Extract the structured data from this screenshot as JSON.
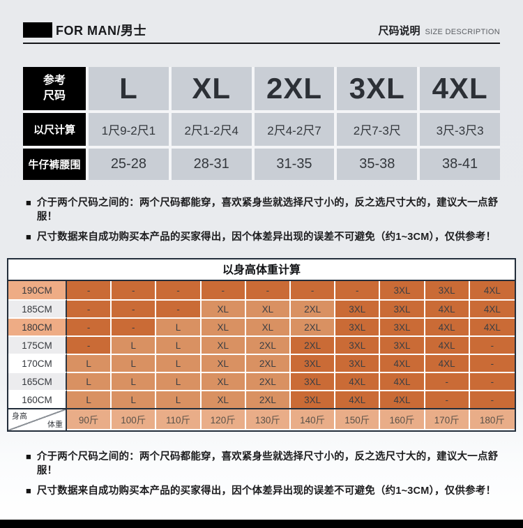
{
  "header": {
    "brand": "FOR MAN/男士",
    "section_title_cn": "尺码说明",
    "section_title_en": "SIZE DESCRIPTION"
  },
  "size_table": {
    "corner_label": "参考\n尺码",
    "sizes": [
      "L",
      "XL",
      "2XL",
      "3XL",
      "4XL"
    ],
    "rows": [
      {
        "label": "以尺计算",
        "values": [
          "1尺9-2尺1",
          "2尺1-2尺4",
          "2尺4-2尺7",
          "2尺7-3尺",
          "3尺-3尺3"
        ]
      },
      {
        "label": "牛仔裤腰围",
        "values": [
          "25-28",
          "28-31",
          "31-35",
          "35-38",
          "38-41"
        ]
      }
    ],
    "colors": {
      "header_bg": "#000000",
      "cell_bg": "#c9ced5"
    }
  },
  "notes": {
    "bullet": "■",
    "items": [
      "介于两个尺码之间的：两个尺码都能穿，喜欢紧身些就选择尺寸小的，反之选尺寸大的，建议大一点舒服！",
      "尺寸数据来自成功购买本产品的买家得出，因个体差异出现的误差不可避免（约1~3CM），仅供参考！"
    ]
  },
  "height_table": {
    "title": "以身高体重计算",
    "corner": {
      "top_left": "身高",
      "bottom_right": "体重"
    },
    "weights": [
      "90斤",
      "100斤",
      "110斤",
      "120斤",
      "130斤",
      "140斤",
      "150斤",
      "160斤",
      "170斤",
      "180斤"
    ],
    "rows": [
      {
        "height": "190CM",
        "header_shade": "salmon",
        "cells": [
          [
            "-",
            "dark"
          ],
          [
            "-",
            "dark"
          ],
          [
            "-",
            "dark"
          ],
          [
            "-",
            "dark"
          ],
          [
            "-",
            "dark"
          ],
          [
            "-",
            "dark"
          ],
          [
            "-",
            "dark"
          ],
          [
            "3XL",
            "dark"
          ],
          [
            "3XL",
            "dark"
          ],
          [
            "4XL",
            "dark"
          ]
        ]
      },
      {
        "height": "185CM",
        "header_shade": "gray",
        "cells": [
          [
            "-",
            "dark"
          ],
          [
            "-",
            "dark"
          ],
          [
            "-",
            "dark"
          ],
          [
            "XL",
            "light"
          ],
          [
            "XL",
            "light"
          ],
          [
            "2XL",
            "light"
          ],
          [
            "3XL",
            "dark"
          ],
          [
            "3XL",
            "dark"
          ],
          [
            "4XL",
            "dark"
          ],
          [
            "4XL",
            "dark"
          ]
        ]
      },
      {
        "height": "180CM",
        "header_shade": "salmon",
        "cells": [
          [
            "-",
            "dark"
          ],
          [
            "-",
            "dark"
          ],
          [
            "L",
            "light"
          ],
          [
            "XL",
            "light"
          ],
          [
            "XL",
            "light"
          ],
          [
            "2XL",
            "light"
          ],
          [
            "3XL",
            "dark"
          ],
          [
            "3XL",
            "dark"
          ],
          [
            "4XL",
            "dark"
          ],
          [
            "4XL",
            "dark"
          ]
        ]
      },
      {
        "height": "175CM",
        "header_shade": "gray",
        "cells": [
          [
            "-",
            "dark"
          ],
          [
            "L",
            "light"
          ],
          [
            "L",
            "light"
          ],
          [
            "XL",
            "light"
          ],
          [
            "2XL",
            "light"
          ],
          [
            "2XL",
            "dark"
          ],
          [
            "3XL",
            "dark"
          ],
          [
            "3XL",
            "dark"
          ],
          [
            "4XL",
            "dark"
          ],
          [
            "-",
            "dark"
          ]
        ]
      },
      {
        "height": "170CM",
        "header_shade": "white",
        "cells": [
          [
            "L",
            "light"
          ],
          [
            "L",
            "light"
          ],
          [
            "L",
            "light"
          ],
          [
            "XL",
            "light"
          ],
          [
            "2XL",
            "light"
          ],
          [
            "3XL",
            "dark"
          ],
          [
            "3XL",
            "dark"
          ],
          [
            "4XL",
            "dark"
          ],
          [
            "4XL",
            "dark"
          ],
          [
            "-",
            "dark"
          ]
        ]
      },
      {
        "height": "165CM",
        "header_shade": "gray",
        "cells": [
          [
            "L",
            "light"
          ],
          [
            "L",
            "light"
          ],
          [
            "L",
            "light"
          ],
          [
            "XL",
            "light"
          ],
          [
            "2XL",
            "light"
          ],
          [
            "3XL",
            "dark"
          ],
          [
            "4XL",
            "dark"
          ],
          [
            "4XL",
            "dark"
          ],
          [
            "-",
            "dark"
          ],
          [
            "-",
            "dark"
          ]
        ]
      },
      {
        "height": "160CM",
        "header_shade": "white",
        "cells": [
          [
            "L",
            "light"
          ],
          [
            "L",
            "light"
          ],
          [
            "L",
            "light"
          ],
          [
            "XL",
            "light"
          ],
          [
            "2XL",
            "light"
          ],
          [
            "3XL",
            "dark"
          ],
          [
            "4XL",
            "dark"
          ],
          [
            "4XL",
            "dark"
          ],
          [
            "-",
            "dark"
          ],
          [
            "-",
            "dark"
          ]
        ]
      }
    ],
    "colors": {
      "dark": "#ca6b36",
      "light": "#d99162",
      "weight_bg": "#e9ad88",
      "header_salmon": "#eeac85",
      "header_gray": "#ececee",
      "header_white": "#ffffff",
      "border": "#222d3a",
      "text": "#3b3e43"
    }
  }
}
